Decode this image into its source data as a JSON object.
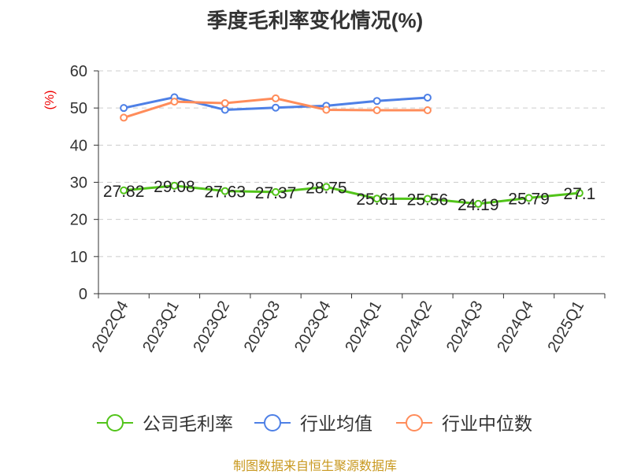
{
  "chart_data": {
    "type": "line",
    "title": "季度毛利率变化情况(%)",
    "ylabel": "(%)",
    "xlabel": "",
    "ylim": [
      0,
      60
    ],
    "yticks": [
      0,
      10,
      20,
      30,
      40,
      50,
      60
    ],
    "grid": true,
    "legend_placement": "bottom",
    "categories": [
      "2022Q4",
      "2023Q1",
      "2023Q2",
      "2023Q3",
      "2023Q4",
      "2024Q1",
      "2024Q2",
      "2024Q3",
      "2024Q4",
      "2025Q1"
    ],
    "series": [
      {
        "name": "公司毛利率",
        "color": "#52c41a",
        "values": [
          27.82,
          29.08,
          27.63,
          27.37,
          28.75,
          25.61,
          25.56,
          24.19,
          25.79,
          27.1
        ],
        "labels": [
          "27.82",
          "29.08",
          "27.63",
          "27.37",
          "28.75",
          "25.61",
          "25.56",
          "24.19",
          "25.79",
          "27.1"
        ]
      },
      {
        "name": "行业均值",
        "color": "#4e80e6",
        "values": [
          50.0,
          52.9,
          49.5,
          50.1,
          50.6,
          51.9,
          52.8,
          null,
          null,
          null
        ]
      },
      {
        "name": "行业中位数",
        "color": "#ff8c5a",
        "values": [
          47.4,
          51.7,
          51.3,
          52.6,
          49.5,
          49.4,
          49.4,
          null,
          null,
          null
        ]
      }
    ]
  },
  "footer": "制图数据来自恒生聚源数据库"
}
